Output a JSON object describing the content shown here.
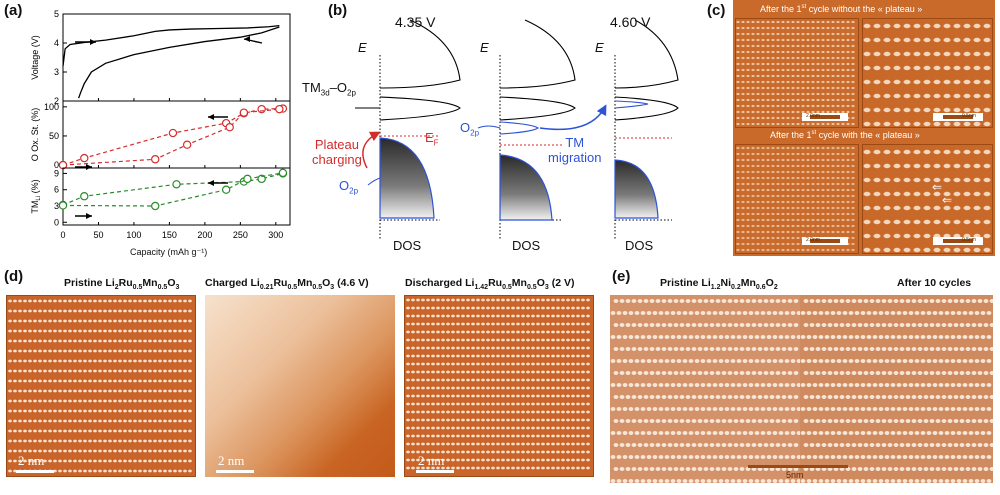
{
  "panels": {
    "a": {
      "label": "(a)",
      "xlabel": "Capacity (mAh g⁻¹)",
      "xticks": [
        "0",
        "50",
        "100",
        "150",
        "200",
        "250",
        "300"
      ],
      "xlim": [
        0,
        320
      ],
      "top": {
        "ylabel": "Voltage (V)",
        "yticks": [
          "2",
          "3",
          "4",
          "5"
        ],
        "ylim": [
          2,
          5
        ]
      },
      "mid": {
        "ylabel": "O Ox. St. (%)",
        "yticks": [
          "0",
          "50",
          "100"
        ],
        "ylim": [
          -5,
          110
        ]
      },
      "bot": {
        "ylabel_main": "TM",
        "ylabel_sub": "Li",
        "ylabel_tail": " (%)",
        "yticks": [
          "0",
          "3",
          "6",
          "9"
        ],
        "ylim": [
          -0.5,
          10
        ]
      }
    },
    "b": {
      "label": "(b)",
      "voltage_left": "4.35 V",
      "voltage_right": "4.60 V",
      "axis_label": "E",
      "dos_label": "DOS",
      "band_tm": "TM",
      "band_tm_sub": "3d",
      "band_dash": "–O",
      "band_o_sub": "2p",
      "plateau_label_1": "Plateau",
      "plateau_label_2": "charging",
      "fermi": "E",
      "fermi_sub": "F",
      "o2p": "O",
      "o2p_sub": "2p",
      "tm_migration_1": "TM",
      "tm_migration_2": "migration"
    },
    "c": {
      "label": "(c)",
      "caption_top_pre": "After the 1",
      "caption_top_sup": "st",
      "caption_top_post": " cycle without the « plateau »",
      "caption_bot_pre": "After the 1",
      "caption_bot_sup": "st",
      "caption_bot_post": " cycle with the « plateau »",
      "scale_a": "2.0nm",
      "scale_b": "0.5nm"
    },
    "d": {
      "label": "(d)",
      "cap1_pre": "Pristine Li",
      "cap1_s1": "2",
      "cap1_m1": "Ru",
      "cap1_s2": "0.5",
      "cap1_m2": "Mn",
      "cap1_s3": "0.5",
      "cap1_m3": "O",
      "cap1_s4": "3",
      "cap2_pre": "Charged  Li",
      "cap2_s1": "0.21",
      "cap2_m1": "Ru",
      "cap2_s2": "0.5",
      "cap2_m2": "Mn",
      "cap2_s3": "0.5",
      "cap2_m3": "O",
      "cap2_s4": "3",
      "cap2_post": " (4.6 V)",
      "cap3_pre": "Discharged  Li",
      "cap3_s1": "1.42",
      "cap3_m1": "Ru",
      "cap3_s2": "0.5",
      "cap3_m2": "Mn",
      "cap3_s3": "0.5",
      "cap3_m3": "O",
      "cap3_s4": "3",
      "cap3_post": " (2 V)",
      "scale": "2 nm"
    },
    "e": {
      "label": "(e)",
      "cap_left_pre": "Pristine Li",
      "cap_left_s1": "1.2",
      "cap_left_m1": "Ni",
      "cap_left_s2": "0.2",
      "cap_left_m2": "Mn",
      "cap_left_s3": "0.6",
      "cap_left_m3": "O",
      "cap_left_s4": "2",
      "cap_right": "After 10 cycles",
      "scale": "5nm"
    }
  },
  "chart_data": [
    {
      "type": "line",
      "panel": "a-voltage",
      "ylabel": "Voltage (V)",
      "xlabel": "",
      "series": [
        {
          "name": "",
          "x": [
            0,
            3,
            10,
            30,
            60,
            100,
            130,
            150,
            180,
            220,
            260,
            290,
            305
          ],
          "y": [
            3.2,
            3.8,
            3.95,
            4.02,
            4.1,
            4.25,
            4.4,
            4.45,
            4.48,
            4.5,
            4.52,
            4.56,
            4.6
          ]
        },
        {
          "name": "",
          "x": [
            305,
            280,
            250,
            200,
            150,
            100,
            60,
            40,
            30,
            25,
            22
          ],
          "y": [
            4.55,
            4.35,
            4.2,
            4.05,
            3.85,
            3.6,
            3.3,
            3.0,
            2.6,
            2.3,
            2.1
          ]
        }
      ],
      "ylim": [
        2,
        5
      ],
      "xlim": [
        0,
        320
      ]
    },
    {
      "type": "scatter",
      "panel": "a-oxidation",
      "ylabel": "O Ox. St. (%)",
      "series": [
        {
          "name": "",
          "color": "#d42c2c",
          "x": [
            0,
            30,
            155,
            230,
            255,
            280,
            310
          ],
          "y": [
            0,
            12,
            55,
            72,
            89,
            96,
            97
          ]
        },
        {
          "name": "",
          "color": "#d42c2c",
          "x": [
            0,
            130,
            175,
            235,
            255,
            305
          ],
          "y": [
            0,
            10,
            35,
            65,
            90,
            96
          ]
        }
      ],
      "ylim": [
        -5,
        110
      ]
    },
    {
      "type": "scatter",
      "panel": "a-TM-Li",
      "ylabel": "TM_Li (%)",
      "series": [
        {
          "name": "",
          "color": "#2a8a2a",
          "x": [
            0,
            30,
            160,
            255,
            280,
            310
          ],
          "y": [
            3.2,
            4.8,
            7.0,
            7.5,
            8.0,
            9.0
          ]
        },
        {
          "name": "",
          "color": "#2a8a2a",
          "x": [
            0,
            130,
            230,
            260,
            310
          ],
          "y": [
            3.1,
            3.0,
            6.0,
            8.0,
            9.1
          ]
        }
      ],
      "ylim": [
        -0.5,
        10
      ]
    }
  ]
}
